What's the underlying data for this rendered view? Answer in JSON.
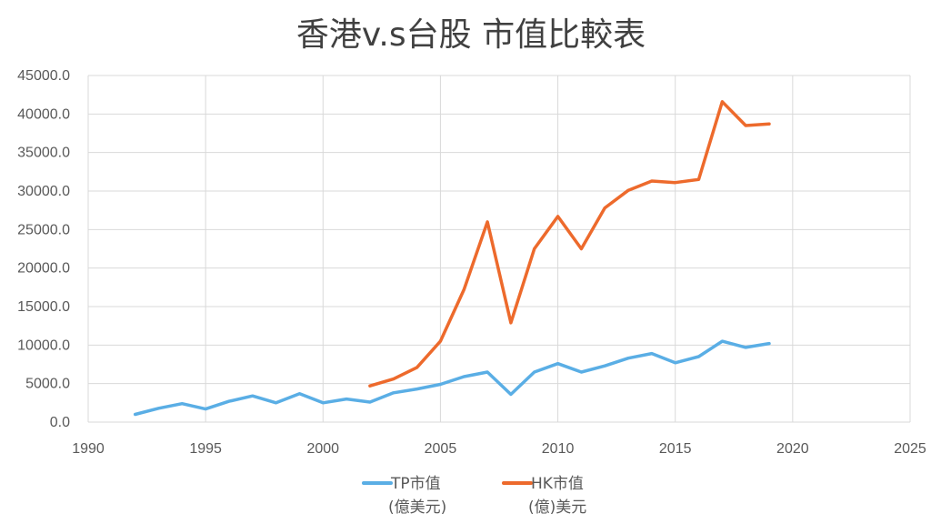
{
  "chart_data": {
    "type": "scatter",
    "title": "香港v.s台股 市值比較表",
    "xlabel": "",
    "ylabel": "",
    "xlim": [
      1990,
      2025
    ],
    "ylim": [
      0,
      45000
    ],
    "x_ticks": [
      "1990",
      "1995",
      "2000",
      "2005",
      "2010",
      "2015",
      "2020",
      "2025"
    ],
    "y_ticks": [
      "0.0",
      "5000.0",
      "10000.0",
      "15000.0",
      "20000.0",
      "25000.0",
      "30000.0",
      "35000.0",
      "40000.0",
      "45000.0"
    ],
    "grid": true,
    "legend_position": "bottom",
    "series": [
      {
        "name_lines": [
          "TP市值",
          "(億美元)"
        ],
        "color": "#5aaee5",
        "x": [
          1992,
          1993,
          1994,
          1995,
          1996,
          1997,
          1998,
          1999,
          2000,
          2001,
          2002,
          2003,
          2004,
          2005,
          2006,
          2007,
          2008,
          2009,
          2010,
          2011,
          2012,
          2013,
          2014,
          2015,
          2016,
          2017,
          2018,
          2019
        ],
        "y": [
          1000,
          1800,
          2400,
          1700,
          2700,
          3400,
          2500,
          3700,
          2500,
          3000,
          2600,
          3800,
          4300,
          4900,
          5900,
          6500,
          3600,
          6500,
          7600,
          6500,
          7300,
          8300,
          8900,
          7700,
          8500,
          10500,
          9700,
          10200
        ]
      },
      {
        "name_lines": [
          "HK市值",
          "(億)美元"
        ],
        "color": "#ed6a2c",
        "x": [
          2002,
          2003,
          2004,
          2005,
          2006,
          2007,
          2008,
          2009,
          2010,
          2011,
          2012,
          2013,
          2014,
          2015,
          2016,
          2017,
          2018,
          2019
        ],
        "y": [
          4700,
          5600,
          7100,
          10500,
          17200,
          26000,
          12900,
          22500,
          26700,
          22500,
          27800,
          30100,
          31300,
          31100,
          31500,
          41600,
          38500,
          38700
        ]
      }
    ]
  }
}
